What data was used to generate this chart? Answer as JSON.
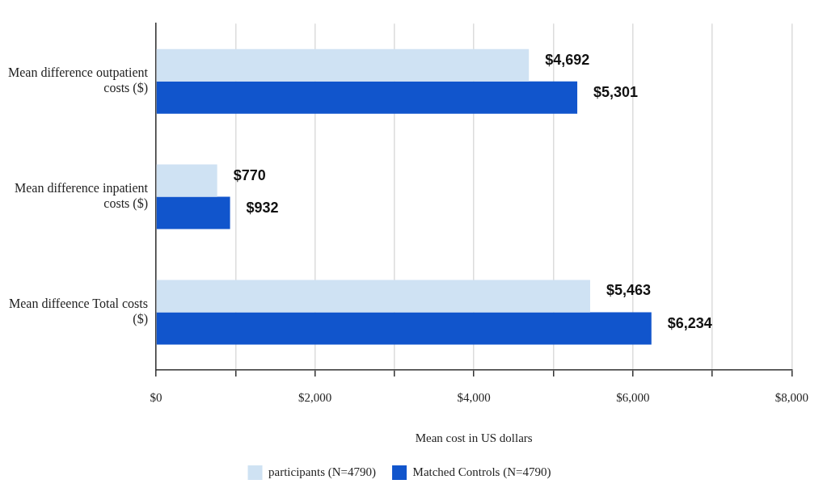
{
  "chart_data": {
    "type": "bar",
    "orientation": "horizontal",
    "categories": [
      "Mean difference outpatient costs ($)",
      "Mean difference inpatient costs ($)",
      "Mean diffeence Total costs ($)"
    ],
    "series": [
      {
        "name": "participants (N=4790)",
        "color": "#cfe2f3",
        "values": [
          4692,
          770,
          5463
        ],
        "value_labels": [
          "$4,692",
          "$770",
          "$5,463"
        ]
      },
      {
        "name": "Matched Controls (N=4790)",
        "color": "#1155cc",
        "values": [
          5301,
          932,
          6234
        ],
        "value_labels": [
          "$5,301",
          "$932",
          "$6,234"
        ]
      }
    ],
    "xlabel": "Mean cost in US dollars",
    "xlim": [
      0,
      8000
    ],
    "xticks": [
      {
        "value": 0,
        "label": "$0"
      },
      {
        "value": 1000,
        "label": null
      },
      {
        "value": 2000,
        "label": "$2,000"
      },
      {
        "value": 3000,
        "label": null
      },
      {
        "value": 4000,
        "label": "$4,000"
      },
      {
        "value": 5000,
        "label": null
      },
      {
        "value": 6000,
        "label": "$6,000"
      },
      {
        "value": 7000,
        "label": null
      },
      {
        "value": 8000,
        "label": "$8,000"
      }
    ],
    "grid": "x",
    "legend": "bottom"
  }
}
